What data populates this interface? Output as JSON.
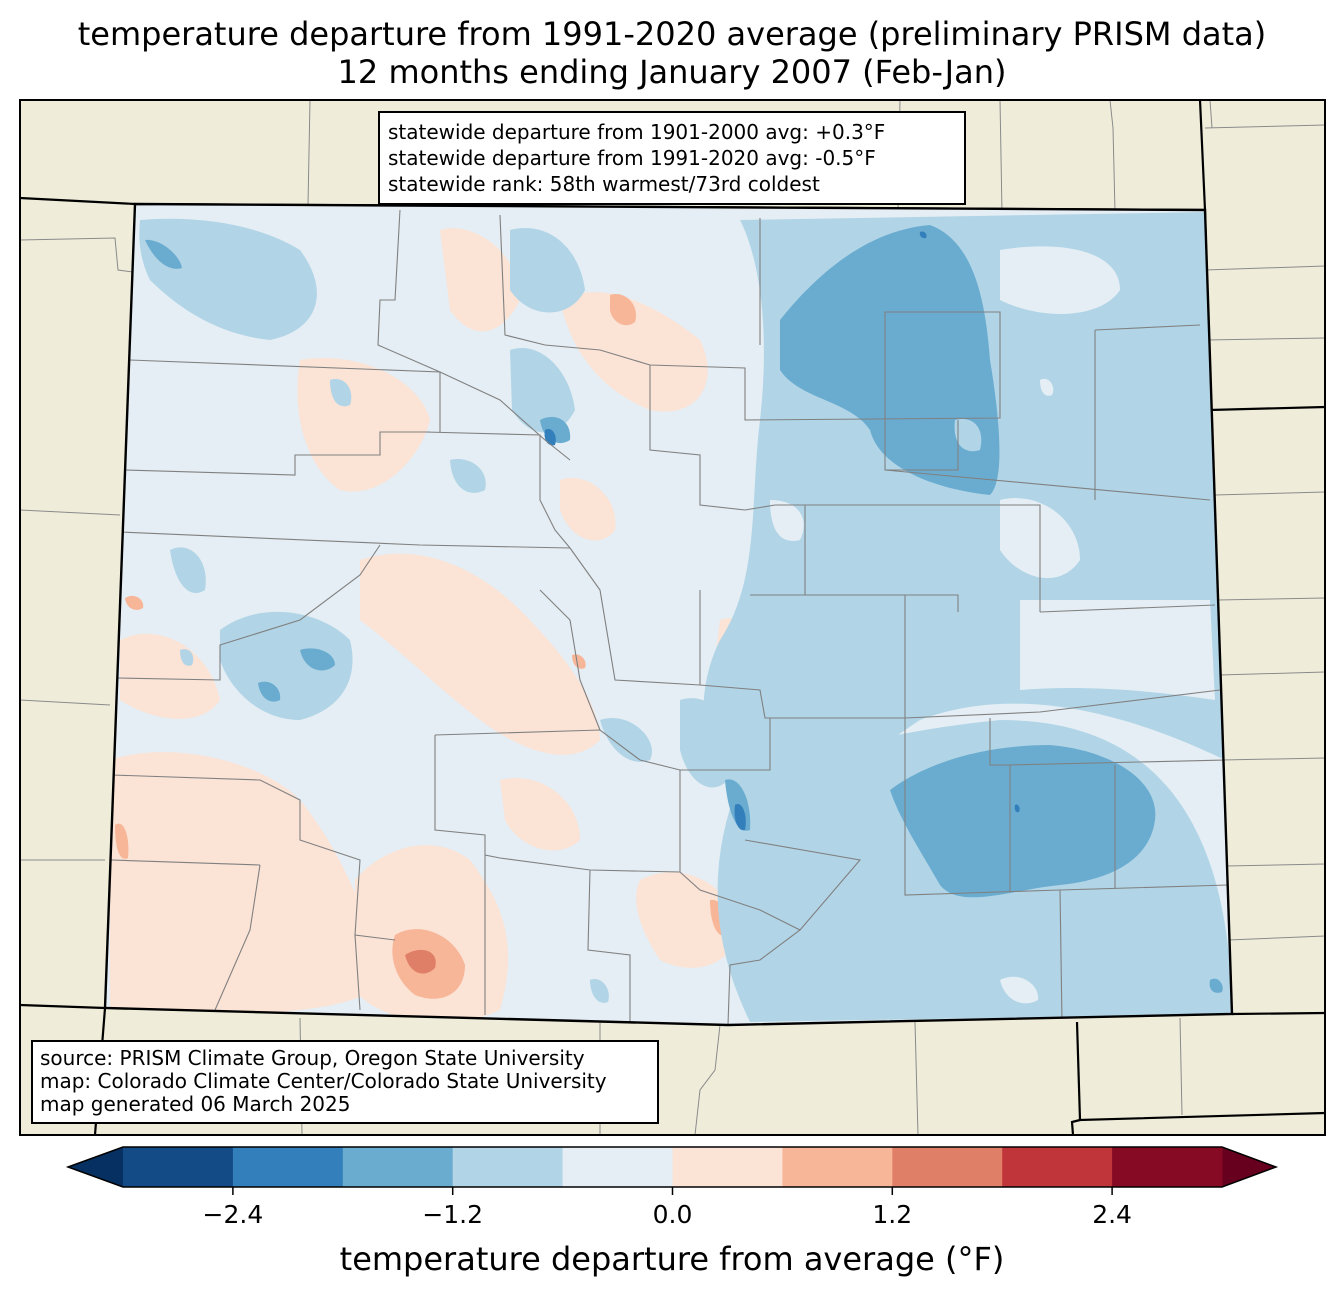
{
  "title": {
    "line1": "temperature departure from 1991-2020 average (preliminary PRISM data)",
    "line2": "12 months ending January 2007 (Feb-Jan)"
  },
  "stats": {
    "line1": "statewide departure from 1901-2000 avg: +0.3°F",
    "line2": "statewide departure from 1991-2020 avg: -0.5°F",
    "line3": "statewide rank: 58th warmest/73rd coldest"
  },
  "source": {
    "line1": "source: PRISM Climate Group, Oregon State University",
    "line2": "map: Colorado Climate Center/Colorado State University",
    "line3": "map generated 06 March 2025"
  },
  "colorbar": {
    "label": "temperature departure from average (°F)",
    "ticks": [
      "−2.4",
      "−1.2",
      "0.0",
      "1.2",
      "2.4"
    ],
    "tick_values": [
      -2.4,
      -1.2,
      0.0,
      1.2,
      2.4
    ],
    "bins": [
      -3.0,
      -2.4,
      -1.8,
      -1.2,
      -0.6,
      0.0,
      0.6,
      1.2,
      1.8,
      2.4,
      3.0
    ],
    "colors": [
      "#134b87",
      "#327fbb",
      "#6aacd0",
      "#b1d5e7",
      "#e5eef4",
      "#fbe3d6",
      "#f7b698",
      "#e07f67",
      "#c0353a",
      "#870a24"
    ],
    "under_color": "#053061",
    "over_color": "#67001f"
  },
  "map": {
    "state": "Colorado",
    "background_color": "#efedda",
    "county_line_color": "#808080"
  }
}
